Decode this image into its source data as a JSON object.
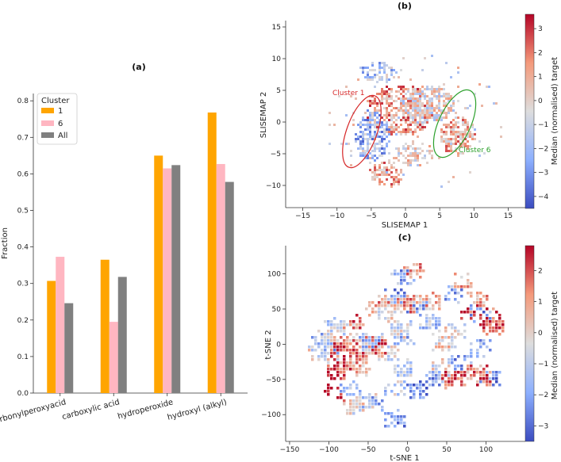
{
  "chart_data": [
    {
      "panel": "(a)",
      "type": "bar",
      "ylabel": "Fraction",
      "categories": [
        "carbonylperoxyacid",
        "carboxylic acid",
        "hydroperoxide",
        "hydroxyl (alkyl)"
      ],
      "series": [
        {
          "name": "1",
          "values": [
            0.307,
            0.365,
            0.65,
            0.768
          ],
          "color": "#FFA500"
        },
        {
          "name": "6",
          "values": [
            0.373,
            0.195,
            0.615,
            0.627
          ],
          "color": "#FFB6C1"
        },
        {
          "name": "All",
          "values": [
            0.246,
            0.318,
            0.624,
            0.578
          ],
          "color": "#808080"
        }
      ],
      "ylim": [
        0,
        0.82
      ],
      "yticks": [
        "0.0",
        "0.1",
        "0.2",
        "0.3",
        "0.4",
        "0.5",
        "0.6",
        "0.7",
        "0.8"
      ],
      "legend": {
        "title": "Cluster",
        "position": "top-left"
      }
    },
    {
      "panel": "(b)",
      "type": "heatmap",
      "xlabel": "SLISEMAP 1",
      "ylabel": "SLISEMAP 2",
      "xlim": [
        -17.5,
        17.5
      ],
      "ylim": [
        -13.5,
        16
      ],
      "xticks": [
        "−15",
        "−10",
        "−5",
        "0",
        "5",
        "10",
        "15"
      ],
      "yticks": [
        "−10",
        "−5",
        "0",
        "5",
        "10",
        "15"
      ],
      "annotations": [
        {
          "text": "Cluster 1",
          "color": "#d62728",
          "x": -6.5,
          "y": -2.5
        },
        {
          "text": "Cluster 6",
          "color": "#2ca02c",
          "x": 8.5,
          "y": -1.5
        }
      ],
      "colorbar": {
        "label": "Median (normalised) target",
        "ticks": [
          "3",
          "2",
          "1",
          "0",
          "−1",
          "−2",
          "−3",
          "−4"
        ],
        "range": [
          -4.5,
          3.6
        ]
      }
    },
    {
      "panel": "(c)",
      "type": "heatmap",
      "xlabel": "t-SNE 1",
      "ylabel": "t-SNE 2",
      "xlim": [
        -155,
        150
      ],
      "ylim": [
        -138,
        140
      ],
      "xticks": [
        "−150",
        "−100",
        "−50",
        "0",
        "50",
        "100"
      ],
      "yticks": [
        "−100",
        "−50",
        "0",
        "50",
        "100"
      ],
      "colorbar": {
        "label": "Median (normalised) target",
        "ticks": [
          "2",
          "1",
          "0",
          "−1",
          "−2",
          "−3"
        ],
        "range": [
          -3.5,
          2.8
        ]
      }
    }
  ]
}
